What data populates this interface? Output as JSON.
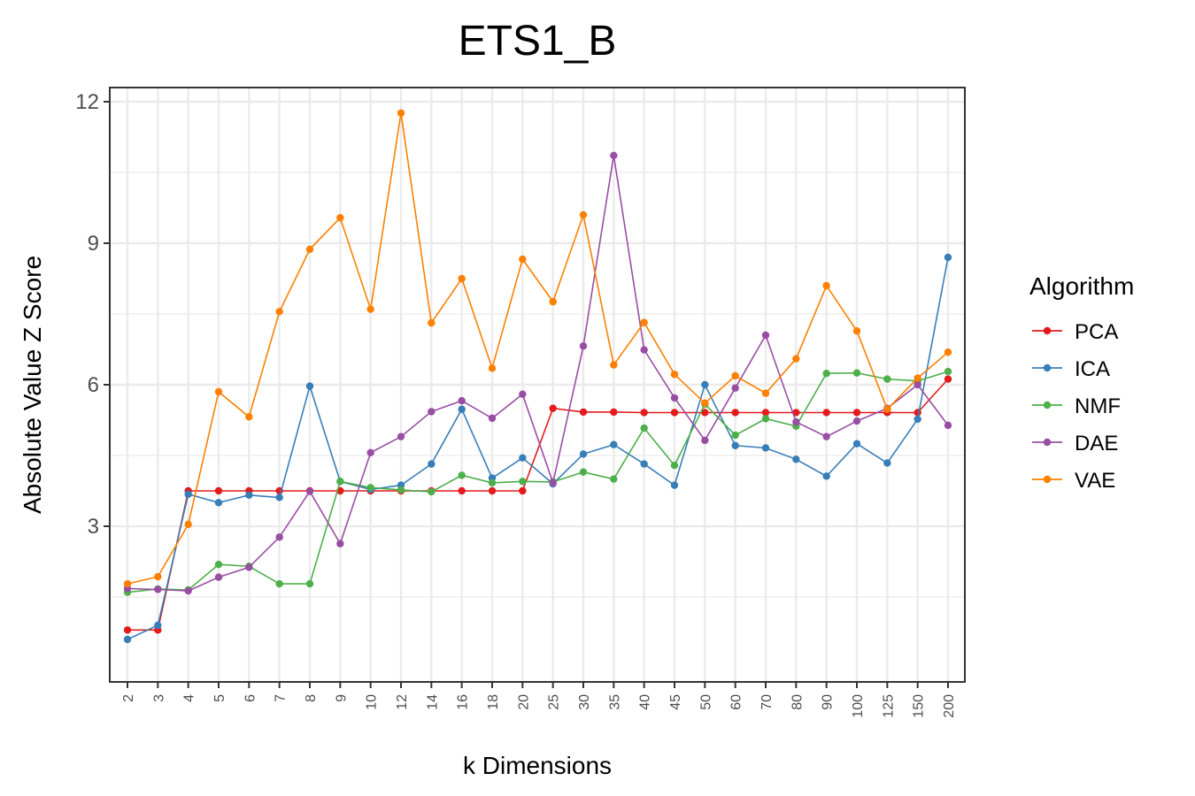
{
  "chart_data": {
    "type": "line",
    "title": "ETS1_B",
    "xlabel": "k Dimensions",
    "ylabel": "Absolute Value Z Score",
    "categories": [
      "2",
      "3",
      "4",
      "5",
      "6",
      "7",
      "8",
      "9",
      "10",
      "12",
      "14",
      "16",
      "18",
      "20",
      "25",
      "30",
      "35",
      "40",
      "45",
      "50",
      "60",
      "70",
      "80",
      "90",
      "100",
      "125",
      "150",
      "200"
    ],
    "yticks": [
      "3",
      "6",
      "9",
      "12"
    ],
    "ylim": [
      -0.3,
      12.3
    ],
    "grid": true,
    "legend": {
      "title": "Algorithm",
      "position": "right"
    },
    "series": [
      {
        "name": "PCA",
        "color": "#E41A1C",
        "values": [
          0.8,
          0.8,
          3.75,
          3.75,
          3.75,
          3.75,
          3.75,
          3.75,
          3.75,
          3.75,
          3.75,
          3.75,
          3.75,
          3.75,
          5.5,
          5.42,
          5.42,
          5.41,
          5.41,
          5.41,
          5.41,
          5.41,
          5.41,
          5.41,
          5.41,
          5.41,
          5.41,
          6.12
        ]
      },
      {
        "name": "ICA",
        "color": "#377EB8",
        "values": [
          0.6,
          0.9,
          3.68,
          3.5,
          3.66,
          3.61,
          5.97,
          3.95,
          3.78,
          3.87,
          4.32,
          5.48,
          4.02,
          4.45,
          3.9,
          4.53,
          4.73,
          4.32,
          3.87,
          6.0,
          4.71,
          4.66,
          4.42,
          4.06,
          4.75,
          4.34,
          5.27,
          8.7
        ]
      },
      {
        "name": "NMF",
        "color": "#4DAF4A",
        "values": [
          1.6,
          1.67,
          1.65,
          2.19,
          2.15,
          1.78,
          1.78,
          3.95,
          3.82,
          3.77,
          3.73,
          4.08,
          3.92,
          3.95,
          3.94,
          4.15,
          4.0,
          5.08,
          4.29,
          5.59,
          4.93,
          5.28,
          5.12,
          6.24,
          6.25,
          6.12,
          6.08,
          6.28
        ]
      },
      {
        "name": "DAE",
        "color": "#984EA3",
        "values": [
          1.68,
          1.66,
          1.63,
          1.92,
          2.13,
          2.77,
          3.74,
          2.63,
          4.56,
          4.9,
          5.43,
          5.66,
          5.29,
          5.8,
          3.92,
          6.82,
          10.86,
          6.74,
          5.72,
          4.82,
          5.93,
          7.05,
          5.21,
          4.9,
          5.23,
          5.5,
          6.0,
          5.14
        ]
      },
      {
        "name": "VAE",
        "color": "#FF7F00",
        "values": [
          1.78,
          1.93,
          3.04,
          5.85,
          5.32,
          7.55,
          8.87,
          9.54,
          7.6,
          11.76,
          7.31,
          8.25,
          6.35,
          8.66,
          7.76,
          9.6,
          6.42,
          7.32,
          6.22,
          5.61,
          6.19,
          5.82,
          6.55,
          8.1,
          7.14,
          5.48,
          6.14,
          6.69
        ]
      }
    ]
  }
}
